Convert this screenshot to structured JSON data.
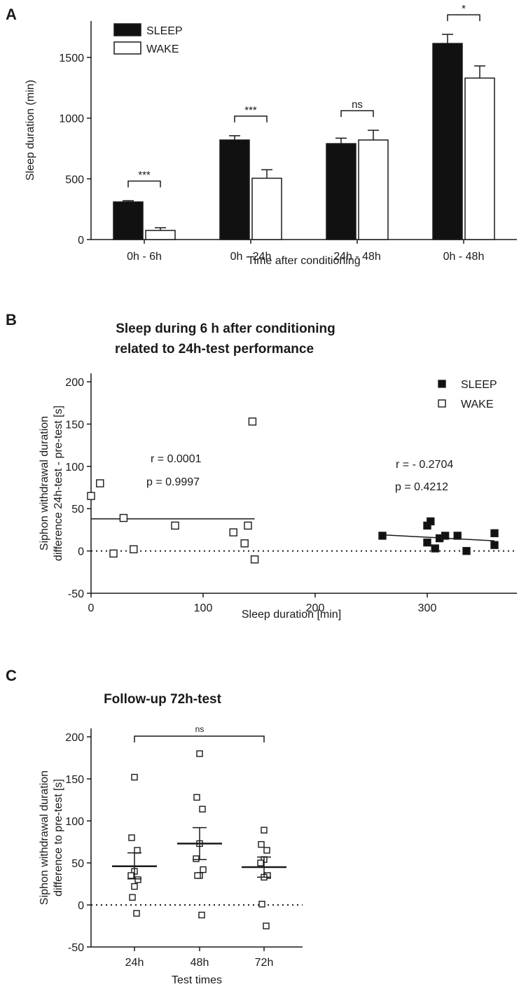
{
  "chart_data": [
    {
      "panel": "A",
      "type": "bar",
      "xlabel": "Time after conditioning",
      "ylabel": "Sleep duration (min)",
      "ylim": [
        0,
        1800
      ],
      "yticks": [
        0,
        500,
        1000,
        1500
      ],
      "categories": [
        "0h - 6h",
        "0h - 24h",
        "24h - 48h",
        "0h - 48h"
      ],
      "series": [
        {
          "name": "SLEEP",
          "values": [
            310,
            820,
            790,
            1615
          ],
          "errors": [
            10,
            35,
            45,
            75
          ],
          "color": "#111111"
        },
        {
          "name": "WAKE",
          "values": [
            75,
            505,
            820,
            1330
          ],
          "errors": [
            22,
            70,
            80,
            100
          ],
          "color": "#ffffff"
        }
      ],
      "significance": [
        "***",
        "***",
        "ns",
        "*"
      ],
      "legend_position": "top-left"
    },
    {
      "panel": "B",
      "type": "scatter",
      "title_lines": [
        "Sleep during 6 h after conditioning",
        "related to 24h-test performance"
      ],
      "xlabel": "Sleep duration [min]",
      "ylabel_lines": [
        "Siphon withdrawal duration",
        "difference 24h-test - pre-test [s]"
      ],
      "xlim": [
        0,
        380
      ],
      "ylim": [
        -50,
        210
      ],
      "xticks": [
        0,
        100,
        200,
        300
      ],
      "yticks": [
        -50,
        0,
        50,
        100,
        150,
        200
      ],
      "series": [
        {
          "name": "SLEEP",
          "marker": "filled-square",
          "points": [
            [
              260,
              18
            ],
            [
              300,
              30
            ],
            [
              303,
              35
            ],
            [
              300,
              10
            ],
            [
              307,
              3
            ],
            [
              311,
              15
            ],
            [
              316,
              18
            ],
            [
              327,
              18
            ],
            [
              335,
              0
            ],
            [
              360,
              7
            ],
            [
              360,
              21
            ]
          ],
          "fit": [
            [
              260,
              19
            ],
            [
              360,
              12
            ]
          ],
          "r_label": "r = - 0.2704",
          "p_label": "p = 0.4212"
        },
        {
          "name": "WAKE",
          "marker": "open-square",
          "points": [
            [
              0,
              65
            ],
            [
              8,
              80
            ],
            [
              20,
              -3
            ],
            [
              29,
              39
            ],
            [
              38,
              2
            ],
            [
              75,
              30
            ],
            [
              127,
              22
            ],
            [
              137,
              9
            ],
            [
              140,
              30
            ],
            [
              144,
              153
            ],
            [
              146,
              -10
            ]
          ],
          "fit": [
            [
              0,
              38
            ],
            [
              146,
              38
            ]
          ],
          "r_label": "r = 0.0001",
          "p_label": "p = 0.9997"
        }
      ],
      "reference_line_y": 0,
      "legend_position": "top-right"
    },
    {
      "panel": "C",
      "type": "scatter",
      "title": "Follow-up 72h-test",
      "xlabel": "Test times",
      "ylabel_lines": [
        "Siphon withdrawal duration",
        "difference to pre-test [s]"
      ],
      "categories": [
        "24h",
        "48h",
        "72h"
      ],
      "ylim": [
        -50,
        210
      ],
      "yticks": [
        -50,
        0,
        50,
        100,
        150,
        200
      ],
      "series": [
        {
          "category": "24h",
          "values": [
            152,
            80,
            65,
            40,
            35,
            30,
            22,
            9,
            -10
          ],
          "mean": 46,
          "sem": [
            31,
            62
          ]
        },
        {
          "category": "48h",
          "values": [
            180,
            128,
            114,
            73,
            55,
            42,
            35,
            35,
            -12
          ],
          "mean": 73,
          "sem": [
            54,
            92
          ]
        },
        {
          "category": "72h",
          "values": [
            89,
            72,
            65,
            54,
            50,
            35,
            33,
            1,
            -25
          ],
          "mean": 45,
          "sem": [
            33,
            57
          ]
        }
      ],
      "significance": "ns",
      "reference_line_y": 0
    }
  ]
}
